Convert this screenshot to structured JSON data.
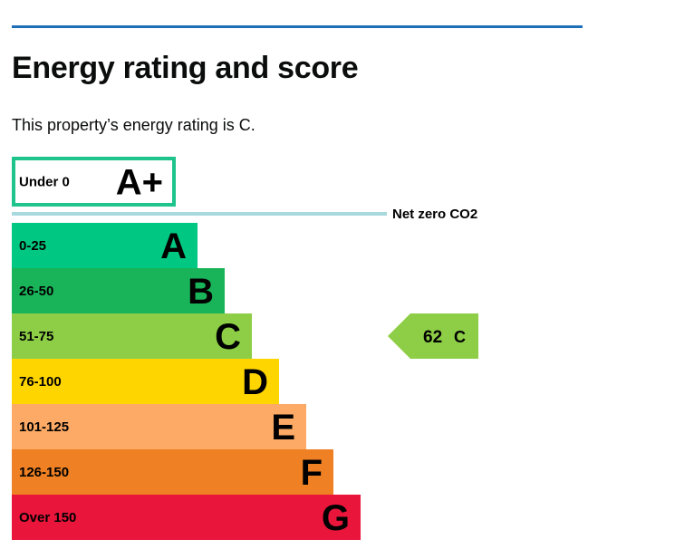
{
  "page": {
    "heading": "Energy rating and score",
    "intro": "This property’s energy rating is C."
  },
  "chart_data": {
    "type": "bar",
    "categories": [
      "A+",
      "A",
      "B",
      "C",
      "D",
      "E",
      "F",
      "G"
    ],
    "bands": [
      {
        "letter": "A+",
        "range": "Under 0",
        "color": "#ffffff",
        "border": "#1fc48c"
      },
      {
        "letter": "A",
        "range": "0-25",
        "color": "#00c781"
      },
      {
        "letter": "B",
        "range": "26-50",
        "color": "#19b459"
      },
      {
        "letter": "C",
        "range": "51-75",
        "color": "#8dce46"
      },
      {
        "letter": "D",
        "range": "76-100",
        "color": "#ffd500"
      },
      {
        "letter": "E",
        "range": "101-125",
        "color": "#fcaa65"
      },
      {
        "letter": "F",
        "range": "126-150",
        "color": "#ef8023"
      },
      {
        "letter": "G",
        "range": "Over 150",
        "color": "#e9153b"
      }
    ],
    "net_zero": {
      "label": "Net zero CO2",
      "line_color": "#a7d9de"
    },
    "current": {
      "score": "62",
      "band": "C",
      "color": "#8dce46"
    }
  }
}
